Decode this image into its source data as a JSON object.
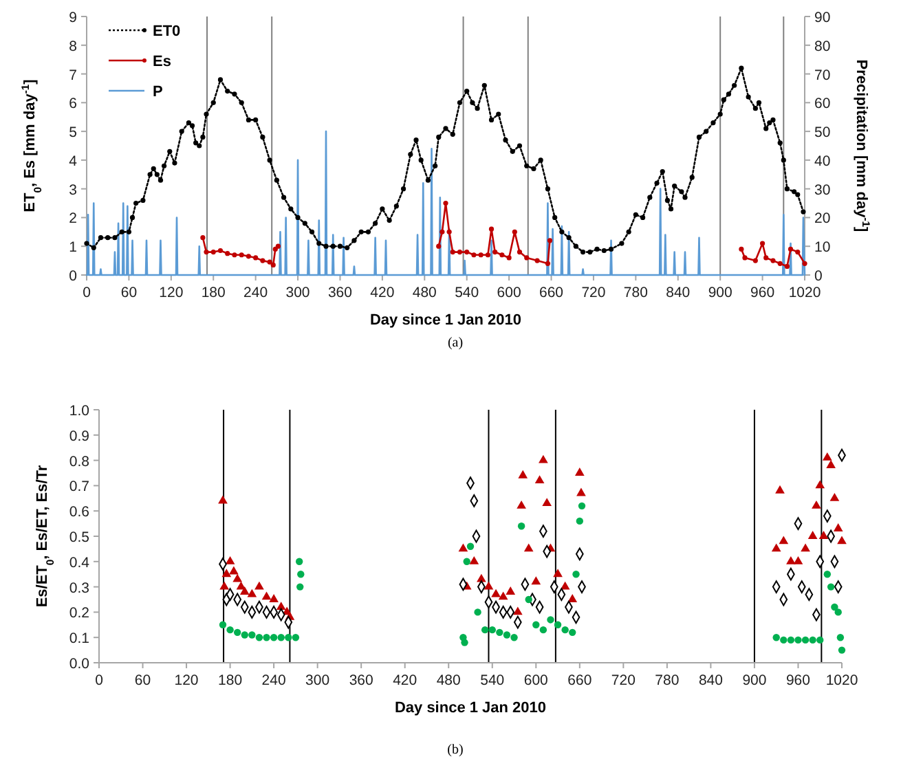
{
  "chart_data": [
    {
      "type": "line",
      "xlabel": "Day since  1 Jan 2010",
      "ylabel": "ET$_{0}$, Es [mm day$^{-1}$]",
      "y2label": "Precipitation [mm day$^{-1}$]",
      "annotations": [
        "(a)"
      ],
      "legend": "top left",
      "grid": false,
      "xlim": [
        0,
        1020
      ],
      "xticks": [
        0,
        60,
        120,
        180,
        240,
        300,
        360,
        420,
        480,
        540,
        600,
        660,
        720,
        780,
        840,
        900,
        960,
        1020
      ],
      "ylim": [
        0,
        9
      ],
      "yticks": [
        0,
        1,
        2,
        3,
        4,
        5,
        6,
        7,
        8,
        9
      ],
      "y2lim": [
        0,
        90
      ],
      "y2ticks": [
        0,
        10,
        20,
        30,
        40,
        50,
        60,
        70,
        80,
        90
      ],
      "ref_lines": [
        {
          "axis": "x",
          "value": 171,
          "color": "#808080"
        },
        {
          "axis": "x",
          "value": 263,
          "color": "#808080"
        },
        {
          "axis": "x",
          "value": 535,
          "color": "#808080"
        },
        {
          "axis": "x",
          "value": 627,
          "color": "#808080"
        },
        {
          "axis": "x",
          "value": 900,
          "color": "#808080"
        },
        {
          "axis": "x",
          "value": 990,
          "color": "#808080"
        }
      ],
      "series": [
        {
          "name": "ET0",
          "color": "#000000",
          "marker": "circle",
          "line_style": "dotted",
          "x": [
            0,
            10,
            20,
            30,
            40,
            50,
            60,
            65,
            70,
            80,
            90,
            95,
            100,
            105,
            110,
            118,
            125,
            135,
            145,
            150,
            155,
            160,
            165,
            170,
            180,
            190,
            200,
            210,
            220,
            230,
            240,
            250,
            260,
            270,
            280,
            290,
            300,
            310,
            320,
            330,
            340,
            350,
            360,
            370,
            380,
            390,
            400,
            410,
            420,
            430,
            440,
            450,
            460,
            468,
            475,
            485,
            495,
            500,
            510,
            520,
            530,
            540,
            548,
            555,
            565,
            575,
            585,
            595,
            605,
            615,
            625,
            635,
            645,
            655,
            665,
            675,
            685,
            695,
            705,
            715,
            725,
            735,
            745,
            760,
            770,
            780,
            790,
            800,
            810,
            818,
            825,
            830,
            835,
            845,
            850,
            860,
            870,
            880,
            890,
            900,
            905,
            912,
            920,
            930,
            940,
            950,
            955,
            965,
            970,
            975,
            985,
            990,
            995,
            1005,
            1010,
            1018
          ],
          "values": [
            1.1,
            0.95,
            1.3,
            1.3,
            1.3,
            1.5,
            1.5,
            2.0,
            2.5,
            2.6,
            3.5,
            3.7,
            3.5,
            3.3,
            3.8,
            4.3,
            3.9,
            5.0,
            5.3,
            5.2,
            4.6,
            4.5,
            4.8,
            5.6,
            6.0,
            6.8,
            6.4,
            6.3,
            6.0,
            5.4,
            5.4,
            4.8,
            4.0,
            3.3,
            2.7,
            2.3,
            2.0,
            1.8,
            1.5,
            1.1,
            1.0,
            1.0,
            1.0,
            0.95,
            1.2,
            1.5,
            1.5,
            1.8,
            2.3,
            1.9,
            2.4,
            3.0,
            4.2,
            4.7,
            4.0,
            3.3,
            3.8,
            4.8,
            5.1,
            4.9,
            6.0,
            6.4,
            6.0,
            5.8,
            6.6,
            5.4,
            5.6,
            4.7,
            4.3,
            4.5,
            3.8,
            3.7,
            4.0,
            3.0,
            2.0,
            1.5,
            1.3,
            1.0,
            0.8,
            0.8,
            0.9,
            0.85,
            0.9,
            1.1,
            1.5,
            2.1,
            2.0,
            2.7,
            3.2,
            3.6,
            2.6,
            2.3,
            3.1,
            2.9,
            2.7,
            3.4,
            4.8,
            5.0,
            5.3,
            5.6,
            6.1,
            6.3,
            6.6,
            7.2,
            6.2,
            5.8,
            6.0,
            5.1,
            5.3,
            5.4,
            4.6,
            4.0,
            3.0,
            2.9,
            2.8,
            2.2
          ]
        },
        {
          "name": "Es",
          "color": "#c00000",
          "marker": "circle",
          "line_style": "solid",
          "x": [
            165,
            170,
            180,
            190,
            200,
            210,
            220,
            230,
            240,
            250,
            260,
            265,
            268,
            272,
            280,
            500,
            505,
            510,
            515,
            520,
            530,
            540,
            550,
            560,
            570,
            575,
            580,
            590,
            600,
            608,
            615,
            625,
            640,
            655,
            658,
            660,
            930,
            935,
            950,
            960,
            965,
            975,
            985,
            995,
            1000,
            1010,
            1020
          ],
          "values": [
            1.3,
            0.8,
            0.8,
            0.85,
            0.75,
            0.7,
            0.7,
            0.65,
            0.6,
            0.5,
            0.45,
            0.35,
            0.9,
            1.0,
            null,
            1.0,
            1.5,
            2.5,
            1.5,
            0.8,
            0.8,
            0.8,
            0.7,
            0.7,
            0.7,
            1.6,
            0.8,
            0.7,
            0.6,
            1.5,
            0.8,
            0.6,
            0.5,
            0.4,
            1.2,
            null,
            0.9,
            0.6,
            0.5,
            1.1,
            0.6,
            0.5,
            0.4,
            0.3,
            0.9,
            0.8,
            0.4
          ]
        },
        {
          "name": "P",
          "color": "#5b9bd5",
          "axis": "y2",
          "marker": "none",
          "line_style": "solid",
          "x": [
            0,
            1,
            2,
            3,
            9,
            10,
            11,
            19,
            20,
            21,
            39,
            40,
            41,
            44,
            45,
            46,
            51,
            52,
            53,
            57,
            58,
            59,
            64,
            65,
            66,
            84,
            85,
            86,
            104,
            105,
            106,
            127,
            128,
            129,
            159,
            160,
            161,
            274,
            275,
            276,
            282,
            283,
            284,
            299,
            300,
            301,
            314,
            315,
            316,
            329,
            330,
            331,
            339,
            340,
            341,
            349,
            350,
            351,
            364,
            365,
            366,
            379,
            380,
            381,
            409,
            410,
            411,
            424,
            425,
            426,
            469,
            470,
            471,
            477,
            478,
            479,
            489,
            490,
            491,
            501,
            502,
            503,
            514,
            515,
            516,
            536,
            537,
            538,
            574,
            575,
            576,
            654,
            655,
            656,
            661,
            662,
            663,
            674,
            675,
            676,
            684,
            685,
            686,
            704,
            705,
            706,
            744,
            745,
            746,
            814,
            815,
            816,
            821,
            822,
            823,
            834,
            835,
            836,
            849,
            850,
            851,
            869,
            870,
            871,
            989,
            990,
            991,
            999,
            1000,
            1001,
            1017,
            1018,
            1020
          ],
          "values": [
            0,
            0,
            21,
            0,
            0,
            25,
            0,
            0,
            2,
            0,
            0,
            8,
            0,
            0,
            18,
            0,
            0,
            25,
            0,
            0,
            24,
            0,
            0,
            12,
            0,
            0,
            12,
            0,
            0,
            12,
            0,
            0,
            20,
            0,
            0,
            10,
            0,
            0,
            15,
            0,
            0,
            20,
            0,
            0,
            40,
            0,
            0,
            12,
            0,
            0,
            19,
            0,
            0,
            50,
            0,
            0,
            14,
            0,
            0,
            13,
            0,
            0,
            3,
            0,
            0,
            13,
            0,
            0,
            12,
            0,
            0,
            14,
            0,
            0,
            32,
            0,
            0,
            44,
            0,
            0,
            27,
            0,
            0,
            16,
            0,
            0,
            5,
            0,
            0,
            12,
            0,
            0,
            25,
            0,
            0,
            16,
            0,
            0,
            17,
            0,
            0,
            15,
            0,
            0,
            2,
            0,
            0,
            12,
            0,
            0,
            30,
            0,
            0,
            14,
            0,
            0,
            8,
            0,
            0,
            8,
            0,
            0,
            13,
            0,
            0,
            21,
            0,
            0,
            11,
            0,
            0,
            20,
            0
          ]
        }
      ]
    },
    {
      "type": "scatter",
      "xlabel": "Day since  1 Jan 2010",
      "ylabel": "Es/ET$_{0}$, Es/ET, Es/Tr",
      "annotations": [
        "(b)"
      ],
      "grid": false,
      "xlim": [
        0,
        1020
      ],
      "xticks": [
        0,
        60,
        120,
        180,
        240,
        300,
        360,
        420,
        480,
        540,
        600,
        660,
        720,
        780,
        840,
        900,
        960,
        1020
      ],
      "ylim": [
        0,
        1
      ],
      "yticks": [
        {
          "value": 0,
          "label": "0.0"
        },
        {
          "value": 0.1,
          "label": "0.1"
        },
        {
          "value": 0.2,
          "label": "0.2"
        },
        {
          "value": 0.3,
          "label": "0.3"
        },
        {
          "value": 0.4,
          "label": "0.4"
        },
        {
          "value": 0.5,
          "label": "0.5"
        },
        {
          "value": 0.6,
          "label": "0.6"
        },
        {
          "value": 0.7,
          "label": "0.7"
        },
        {
          "value": 0.8,
          "label": "0.8"
        },
        {
          "value": 0.9,
          "label": "0.9"
        },
        {
          "value": 1,
          "label": "1.0"
        }
      ],
      "ref_lines": [
        {
          "axis": "x",
          "value": 171,
          "color": "#000000"
        },
        {
          "axis": "x",
          "value": 262,
          "color": "#000000"
        },
        {
          "axis": "x",
          "value": 535,
          "color": "#000000"
        },
        {
          "axis": "x",
          "value": 627,
          "color": "#000000"
        },
        {
          "axis": "x",
          "value": 900,
          "color": "#000000"
        },
        {
          "axis": "x",
          "value": 992,
          "color": "#000000"
        }
      ],
      "series": [
        {
          "color": "#c00000",
          "marker": "triangle",
          "x": [
            170,
            172,
            175,
            180,
            185,
            190,
            195,
            200,
            210,
            220,
            230,
            240,
            250,
            258,
            262,
            500,
            505,
            515,
            525,
            535,
            545,
            555,
            565,
            575,
            580,
            582,
            590,
            600,
            605,
            610,
            615,
            620,
            630,
            640,
            650,
            660,
            662,
            930,
            935,
            940,
            950,
            960,
            970,
            980,
            985,
            990,
            995,
            1000,
            1005,
            1010,
            1015,
            1020
          ],
          "values": [
            0.64,
            0.3,
            0.35,
            0.4,
            0.36,
            0.33,
            0.3,
            0.28,
            0.27,
            0.3,
            0.26,
            0.25,
            0.22,
            0.2,
            0.18,
            0.45,
            0.3,
            0.4,
            0.33,
            0.3,
            0.27,
            0.26,
            0.28,
            0.2,
            0.62,
            0.74,
            0.45,
            0.32,
            0.72,
            0.8,
            0.63,
            0.45,
            0.35,
            0.3,
            0.25,
            0.75,
            0.67,
            0.45,
            0.68,
            0.48,
            0.4,
            0.4,
            0.45,
            0.5,
            0.62,
            0.7,
            0.5,
            0.81,
            0.78,
            0.65,
            0.53,
            0.48
          ]
        },
        {
          "color": "#000000",
          "marker": "diamond",
          "x": [
            170,
            175,
            180,
            190,
            200,
            210,
            220,
            230,
            240,
            250,
            260,
            500,
            510,
            515,
            518,
            525,
            535,
            545,
            555,
            565,
            575,
            585,
            595,
            605,
            610,
            615,
            625,
            635,
            645,
            655,
            660,
            663,
            930,
            940,
            950,
            960,
            965,
            975,
            985,
            990,
            1000,
            1005,
            1010,
            1015,
            1020
          ],
          "values": [
            0.39,
            0.25,
            0.27,
            0.25,
            0.22,
            0.2,
            0.22,
            0.2,
            0.2,
            0.19,
            0.16,
            0.31,
            0.71,
            0.64,
            0.5,
            0.3,
            0.24,
            0.22,
            0.2,
            0.2,
            0.16,
            0.31,
            0.25,
            0.22,
            0.52,
            0.44,
            0.3,
            0.27,
            0.22,
            0.18,
            0.43,
            0.3,
            0.3,
            0.25,
            0.35,
            0.55,
            0.3,
            0.27,
            0.19,
            0.4,
            0.58,
            0.5,
            0.4,
            0.3,
            0.82
          ]
        },
        {
          "color": "#00b050",
          "marker": "circle",
          "x": [
            170,
            180,
            190,
            200,
            210,
            220,
            230,
            240,
            250,
            260,
            270,
            275,
            276,
            277,
            500,
            502,
            505,
            510,
            520,
            530,
            540,
            550,
            560,
            570,
            580,
            590,
            600,
            610,
            620,
            630,
            640,
            650,
            655,
            660,
            663,
            930,
            940,
            950,
            960,
            970,
            980,
            990,
            1000,
            1005,
            1010,
            1015,
            1018,
            1020
          ],
          "values": [
            0.15,
            0.13,
            0.12,
            0.11,
            0.11,
            0.1,
            0.1,
            0.1,
            0.1,
            0.1,
            0.1,
            0.4,
            0.3,
            0.35,
            0.1,
            0.08,
            0.4,
            0.46,
            0.2,
            0.13,
            0.13,
            0.12,
            0.11,
            0.1,
            0.54,
            0.25,
            0.15,
            0.13,
            0.17,
            0.15,
            0.13,
            0.12,
            0.35,
            0.56,
            0.62,
            0.1,
            0.09,
            0.09,
            0.09,
            0.09,
            0.09,
            0.09,
            0.35,
            0.3,
            0.22,
            0.2,
            0.1,
            0.05
          ]
        }
      ]
    }
  ]
}
